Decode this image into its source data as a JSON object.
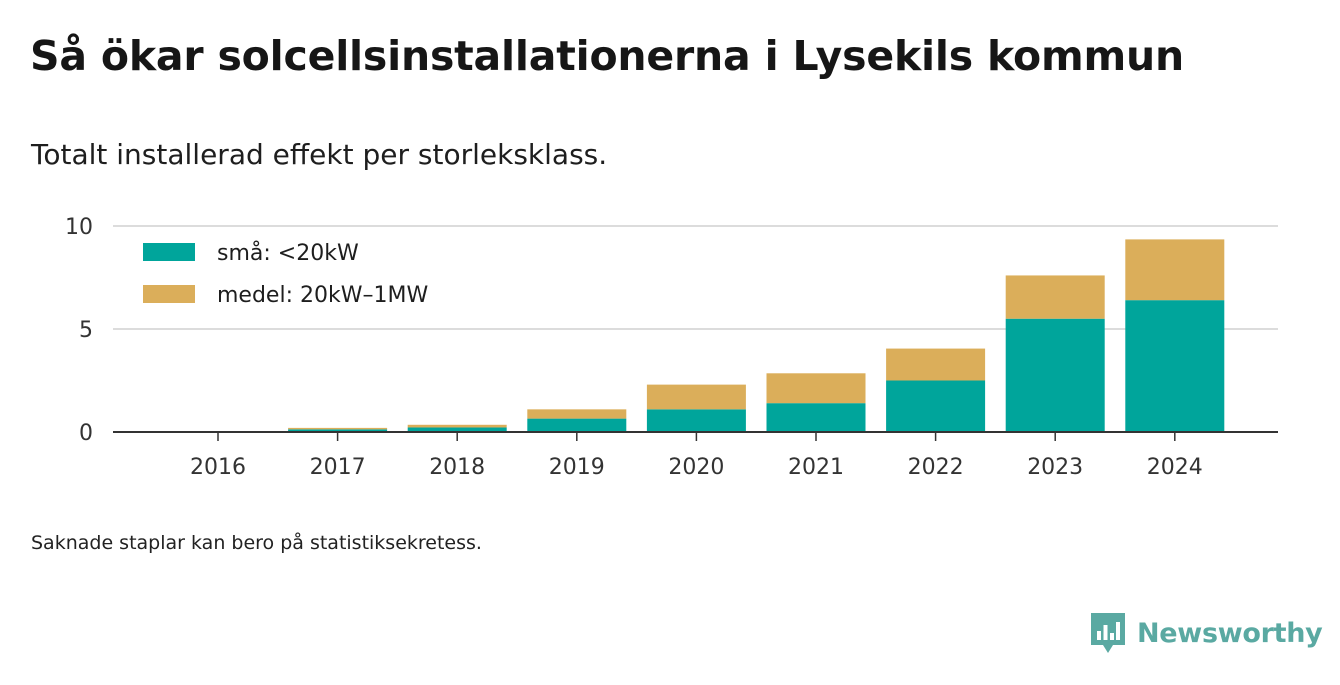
{
  "header": {
    "title": "Så ökar solcellsinstallationerna i Lysekils kommun",
    "subtitle": "Totalt installerad effekt per storleksklass."
  },
  "footer": {
    "note": "Saknade staplar kan bero på statistiksekretess.",
    "brand": "Newsworthy",
    "brand_icon": "newsworthy-logo-icon"
  },
  "colors": {
    "small": "#00a59b",
    "medium": "#dbae5a",
    "brand": "#5aa9a2"
  },
  "chart_data": {
    "type": "bar",
    "stacked": true,
    "categories": [
      "2016",
      "2017",
      "2018",
      "2019",
      "2020",
      "2021",
      "2022",
      "2023",
      "2024"
    ],
    "series": [
      {
        "name": "små: <20kW",
        "color": "#00a59b",
        "values": [
          0.02,
          0.13,
          0.22,
          0.65,
          1.1,
          1.4,
          2.5,
          5.5,
          6.4
        ]
      },
      {
        "name": "medel: 20kW–1MW",
        "color": "#dbae5a",
        "values": [
          0,
          0.07,
          0.13,
          0.45,
          1.2,
          1.45,
          1.55,
          2.1,
          2.95
        ]
      }
    ],
    "yticks": [
      "0",
      "5",
      "10"
    ],
    "ylim": [
      0,
      10
    ],
    "grid": true,
    "legend_position": "top-left"
  }
}
